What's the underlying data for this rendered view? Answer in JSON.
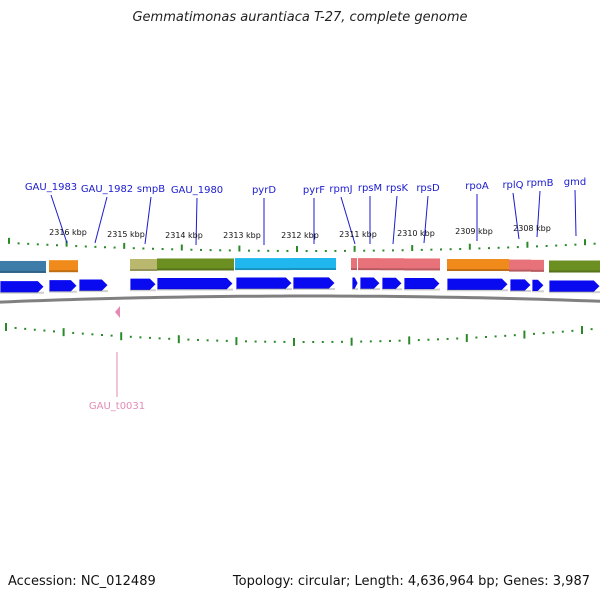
{
  "title": "Gemmatimonas aurantiaca T-27, complete genome",
  "accession": "Accession: NC_012489",
  "topology": "Topology: circular; Length: 4,636,964 bp; Genes: 3,987",
  "kbp_labels": [
    "2316 kbp",
    "2315 kbp",
    "2314 kbp",
    "2313 kbp",
    "2312 kbp",
    "2311 kbp",
    "2310 kbp",
    "2309 kbp",
    "2308 kbp"
  ],
  "gene_labels": [
    "GAU_1983",
    "GAU_1982",
    "smpB",
    "GAU_1980",
    "pyrD",
    "pyrF",
    "rpmJ",
    "rpsM",
    "rpsK",
    "rpsD",
    "rpoA",
    "rplQ",
    "rpmB",
    "gmd"
  ],
  "trna_label": "GAU_t0031",
  "colors": {
    "gene_label": "#1b1bd0",
    "trna_label": "#e58ab6",
    "cds_arrow": "#0a0af0",
    "tick": "#2a8a2a",
    "backbone": "#808080"
  }
}
